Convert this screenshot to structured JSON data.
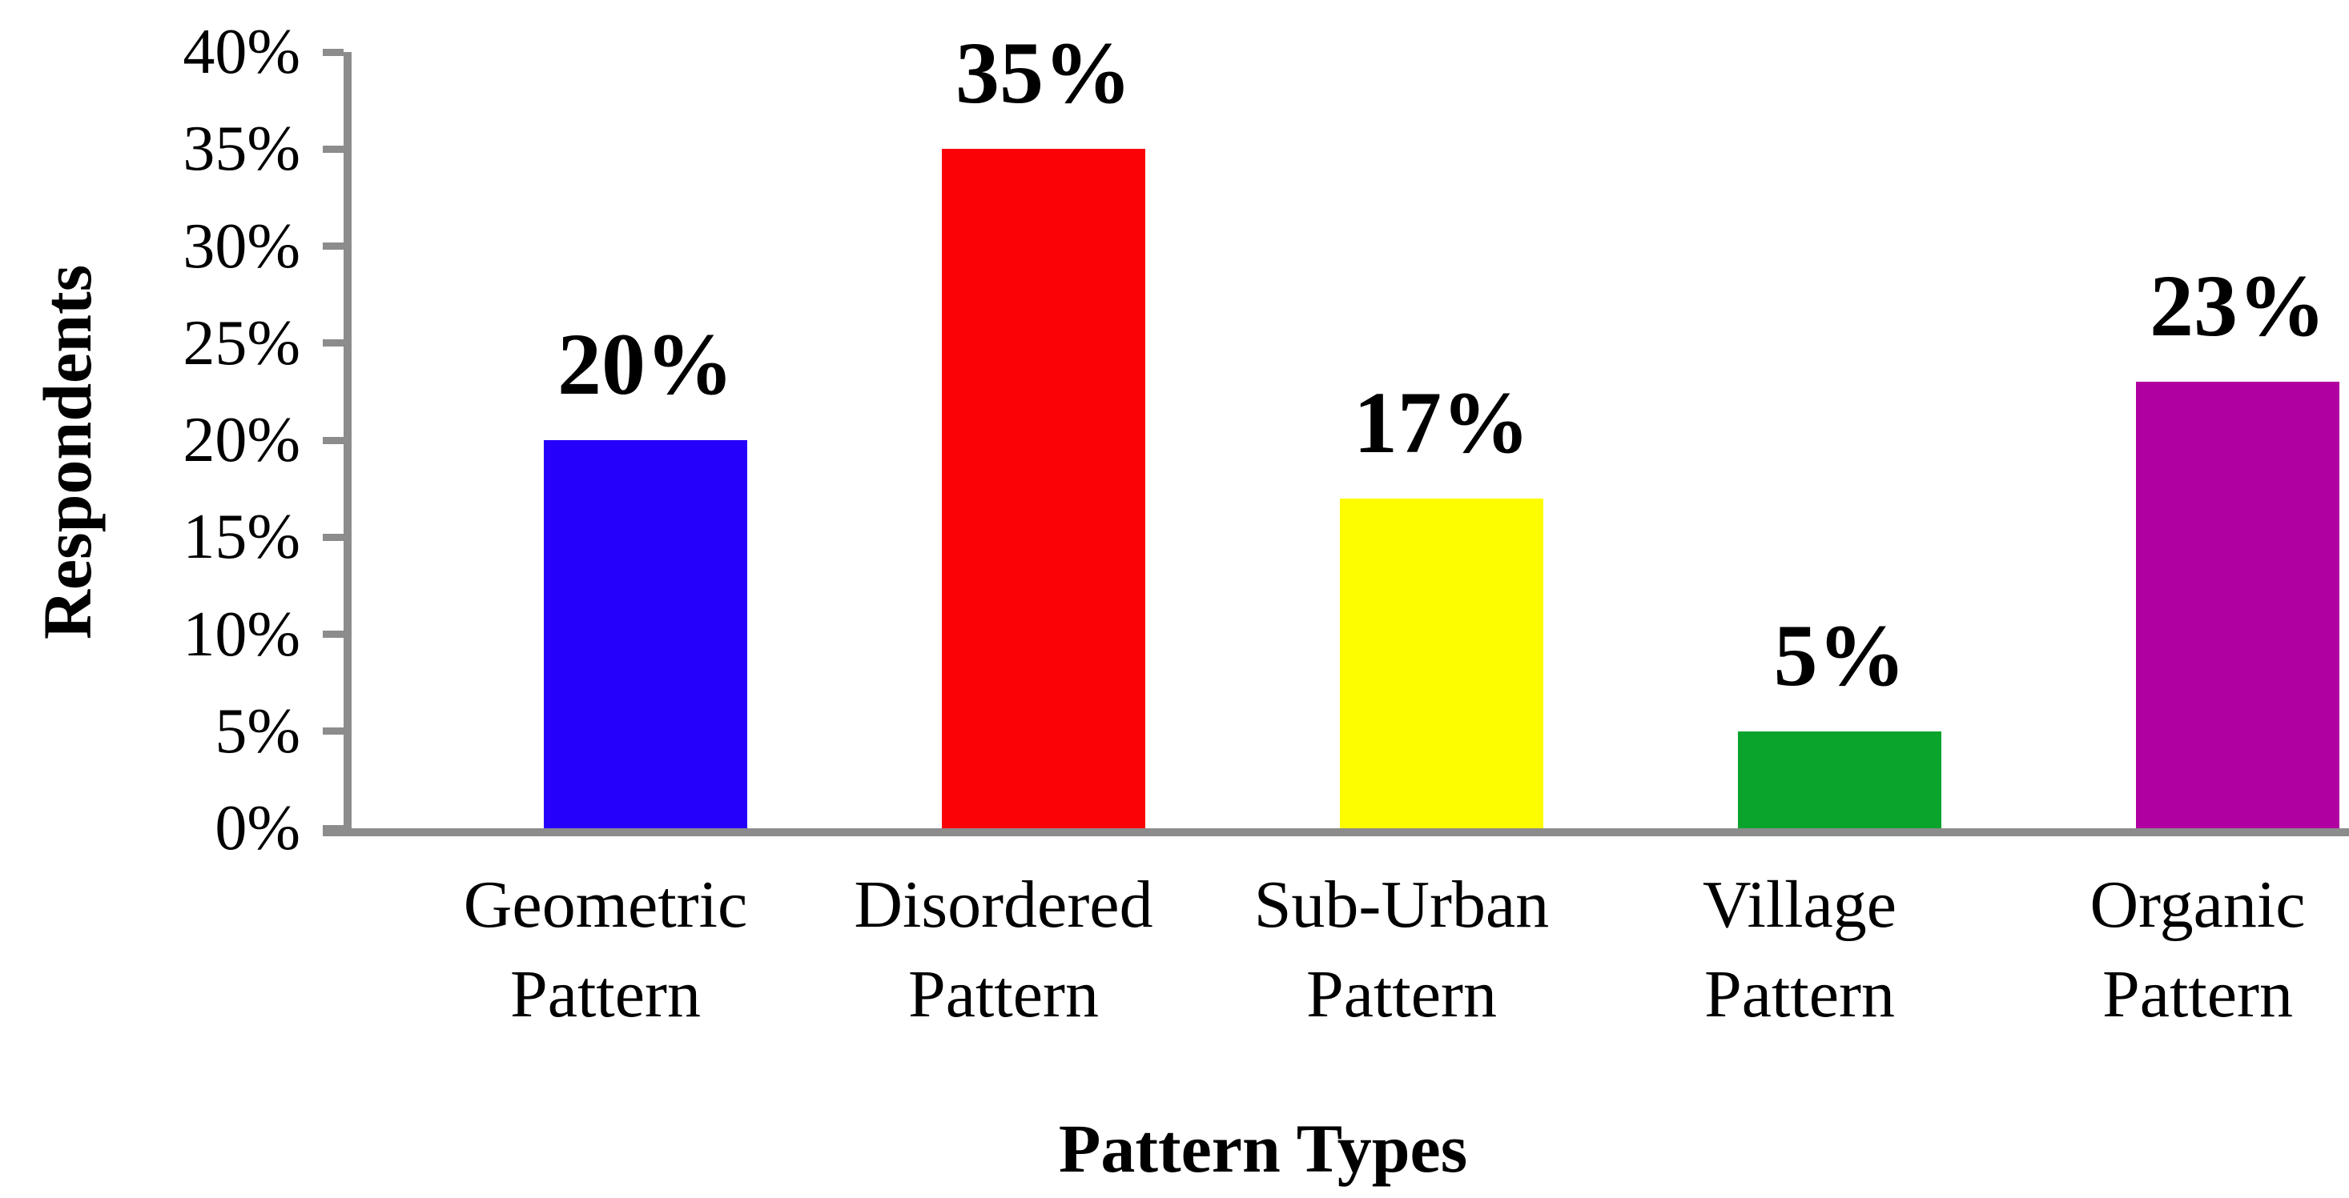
{
  "chart_data": {
    "type": "bar",
    "title": "",
    "xlabel": "Pattern Types",
    "ylabel": "Respondents",
    "categories": [
      "Geometric Pattern",
      "Disordered Pattern",
      "Sub-Urban Pattern",
      "Village Pattern",
      "Organic Pattern"
    ],
    "category_lines": [
      [
        "Geometric",
        "Pattern"
      ],
      [
        "Disordered",
        "Pattern"
      ],
      [
        "Sub-Urban",
        "Pattern"
      ],
      [
        "Village",
        "Pattern"
      ],
      [
        "Organic",
        "Pattern"
      ]
    ],
    "values": [
      20,
      35,
      17,
      5,
      23
    ],
    "data_labels": [
      "20%",
      "35%",
      "17%",
      "5%",
      "23%"
    ],
    "bar_colors": [
      "#2500FB",
      "#FB0306",
      "#FDFD00",
      "#0AA42D",
      "#B100A1"
    ],
    "ylim": [
      0,
      40
    ],
    "ytick_step": 5,
    "ytick_labels": [
      "0%",
      "5%",
      "10%",
      "15%",
      "20%",
      "25%",
      "30%",
      "35%",
      "40%"
    ],
    "grid": false,
    "legend": false,
    "axis_color": "#8C8C8C",
    "text_color": "#000000",
    "background": "#FFFFFF"
  }
}
